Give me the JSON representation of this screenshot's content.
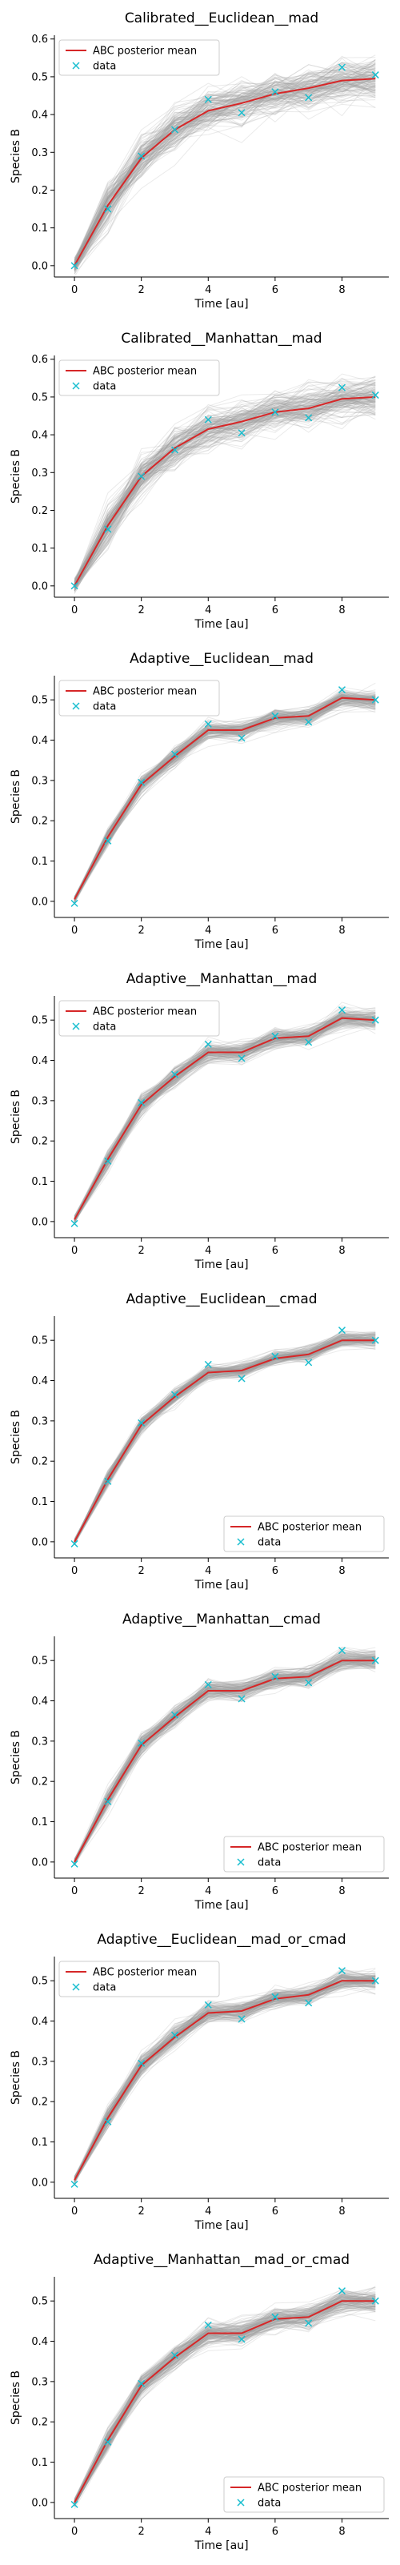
{
  "figure": {
    "ylabel": "Species B",
    "xlabel": "Time [au]",
    "legend_labels": {
      "mean": "ABC posterior mean",
      "data": "data"
    },
    "colors": {
      "posterior_samples": "#9e9e9e",
      "mean": "#d62728",
      "data": "#17becf",
      "axes": "#000000"
    }
  },
  "chart_data": [
    {
      "type": "line",
      "title": "Calibrated__Euclidean__mad",
      "xlabel": "Time [au]",
      "ylabel": "Species B",
      "x": [
        0,
        1,
        2,
        3,
        4,
        5,
        6,
        7,
        8,
        9
      ],
      "xticks": [
        0,
        2,
        4,
        6,
        8
      ],
      "yticks": [
        0.0,
        0.1,
        0.2,
        0.3,
        0.4,
        0.5,
        0.6
      ],
      "ylim": [
        -0.03,
        0.61
      ],
      "xlim": [
        -0.6,
        9.4
      ],
      "legend": "top-left",
      "grid": false,
      "series": [
        {
          "name": "ABC posterior mean",
          "style": "line",
          "values": [
            0.0,
            0.16,
            0.285,
            0.36,
            0.41,
            0.43,
            0.455,
            0.47,
            0.49,
            0.495
          ]
        },
        {
          "name": "data",
          "style": "markers-x",
          "values": [
            0.0,
            0.15,
            0.29,
            0.36,
            0.44,
            0.405,
            0.46,
            0.445,
            0.525,
            0.505
          ]
        }
      ],
      "posterior_samples": {
        "count": 140,
        "spread": 0.045
      }
    },
    {
      "type": "line",
      "title": "Calibrated__Manhattan__mad",
      "xlabel": "Time [au]",
      "ylabel": "Species B",
      "x": [
        0,
        1,
        2,
        3,
        4,
        5,
        6,
        7,
        8,
        9
      ],
      "xticks": [
        0,
        2,
        4,
        6,
        8
      ],
      "yticks": [
        0.0,
        0.1,
        0.2,
        0.3,
        0.4,
        0.5,
        0.6
      ],
      "ylim": [
        -0.03,
        0.61
      ],
      "xlim": [
        -0.6,
        9.4
      ],
      "legend": "top-left",
      "grid": false,
      "series": [
        {
          "name": "ABC posterior mean",
          "style": "line",
          "values": [
            0.0,
            0.16,
            0.29,
            0.365,
            0.415,
            0.435,
            0.46,
            0.47,
            0.495,
            0.5
          ]
        },
        {
          "name": "data",
          "style": "markers-x",
          "values": [
            0.0,
            0.15,
            0.29,
            0.36,
            0.44,
            0.405,
            0.46,
            0.445,
            0.525,
            0.505
          ]
        }
      ],
      "posterior_samples": {
        "count": 140,
        "spread": 0.04
      }
    },
    {
      "type": "line",
      "title": "Adaptive__Euclidean__mad",
      "xlabel": "Time [au]",
      "ylabel": "Species B",
      "x": [
        0,
        1,
        2,
        3,
        4,
        5,
        6,
        7,
        8,
        9
      ],
      "xticks": [
        0,
        2,
        4,
        6,
        8
      ],
      "yticks": [
        0.0,
        0.1,
        0.2,
        0.3,
        0.4,
        0.5
      ],
      "ylim": [
        -0.04,
        0.56
      ],
      "xlim": [
        -0.6,
        9.4
      ],
      "legend": "top-left",
      "grid": false,
      "series": [
        {
          "name": "ABC posterior mean",
          "style": "line",
          "values": [
            0.005,
            0.16,
            0.29,
            0.36,
            0.425,
            0.425,
            0.455,
            0.46,
            0.505,
            0.5
          ]
        },
        {
          "name": "data",
          "style": "markers-x",
          "values": [
            -0.005,
            0.15,
            0.295,
            0.365,
            0.44,
            0.405,
            0.46,
            0.445,
            0.525,
            0.5
          ]
        }
      ],
      "posterior_samples": {
        "count": 140,
        "spread": 0.018
      }
    },
    {
      "type": "line",
      "title": "Adaptive__Manhattan__mad",
      "xlabel": "Time [au]",
      "ylabel": "Species B",
      "x": [
        0,
        1,
        2,
        3,
        4,
        5,
        6,
        7,
        8,
        9
      ],
      "xticks": [
        0,
        2,
        4,
        6,
        8
      ],
      "yticks": [
        0.0,
        0.1,
        0.2,
        0.3,
        0.4,
        0.5
      ],
      "ylim": [
        -0.04,
        0.56
      ],
      "xlim": [
        -0.6,
        9.4
      ],
      "legend": "top-left",
      "grid": false,
      "series": [
        {
          "name": "ABC posterior mean",
          "style": "line",
          "values": [
            0.005,
            0.155,
            0.29,
            0.36,
            0.42,
            0.42,
            0.455,
            0.46,
            0.505,
            0.5
          ]
        },
        {
          "name": "data",
          "style": "markers-x",
          "values": [
            -0.005,
            0.15,
            0.295,
            0.365,
            0.44,
            0.405,
            0.46,
            0.445,
            0.525,
            0.5
          ]
        }
      ],
      "posterior_samples": {
        "count": 140,
        "spread": 0.02
      }
    },
    {
      "type": "line",
      "title": "Adaptive__Euclidean__cmad",
      "xlabel": "Time [au]",
      "ylabel": "Species B",
      "x": [
        0,
        1,
        2,
        3,
        4,
        5,
        6,
        7,
        8,
        9
      ],
      "xticks": [
        0,
        2,
        4,
        6,
        8
      ],
      "yticks": [
        0.0,
        0.1,
        0.2,
        0.3,
        0.4,
        0.5
      ],
      "ylim": [
        -0.04,
        0.56
      ],
      "xlim": [
        -0.6,
        9.4
      ],
      "legend": "bottom-right",
      "grid": false,
      "series": [
        {
          "name": "ABC posterior mean",
          "style": "line",
          "values": [
            0.0,
            0.155,
            0.29,
            0.36,
            0.42,
            0.425,
            0.455,
            0.465,
            0.5,
            0.5
          ]
        },
        {
          "name": "data",
          "style": "markers-x",
          "values": [
            -0.005,
            0.15,
            0.295,
            0.365,
            0.44,
            0.405,
            0.46,
            0.445,
            0.525,
            0.5
          ]
        }
      ],
      "posterior_samples": {
        "count": 140,
        "spread": 0.015
      }
    },
    {
      "type": "line",
      "title": "Adaptive__Manhattan__cmad",
      "xlabel": "Time [au]",
      "ylabel": "Species B",
      "x": [
        0,
        1,
        2,
        3,
        4,
        5,
        6,
        7,
        8,
        9
      ],
      "xticks": [
        0,
        2,
        4,
        6,
        8
      ],
      "yticks": [
        0.0,
        0.1,
        0.2,
        0.3,
        0.4,
        0.5
      ],
      "ylim": [
        -0.04,
        0.56
      ],
      "xlim": [
        -0.6,
        9.4
      ],
      "legend": "bottom-right",
      "grid": false,
      "series": [
        {
          "name": "ABC posterior mean",
          "style": "line",
          "values": [
            0.0,
            0.155,
            0.29,
            0.36,
            0.425,
            0.425,
            0.455,
            0.46,
            0.5,
            0.5
          ]
        },
        {
          "name": "data",
          "style": "markers-x",
          "values": [
            -0.005,
            0.15,
            0.295,
            0.365,
            0.44,
            0.405,
            0.46,
            0.445,
            0.525,
            0.5
          ]
        }
      ],
      "posterior_samples": {
        "count": 140,
        "spread": 0.02
      }
    },
    {
      "type": "line",
      "title": "Adaptive__Euclidean__mad_or_cmad",
      "xlabel": "Time [au]",
      "ylabel": "Species B",
      "x": [
        0,
        1,
        2,
        3,
        4,
        5,
        6,
        7,
        8,
        9
      ],
      "xticks": [
        0,
        2,
        4,
        6,
        8
      ],
      "yticks": [
        0.0,
        0.1,
        0.2,
        0.3,
        0.4,
        0.5
      ],
      "ylim": [
        -0.04,
        0.56
      ],
      "xlim": [
        -0.6,
        9.4
      ],
      "legend": "top-left",
      "grid": false,
      "series": [
        {
          "name": "ABC posterior mean",
          "style": "line",
          "values": [
            0.005,
            0.16,
            0.29,
            0.36,
            0.42,
            0.425,
            0.455,
            0.465,
            0.5,
            0.5
          ]
        },
        {
          "name": "data",
          "style": "markers-x",
          "values": [
            -0.005,
            0.15,
            0.295,
            0.365,
            0.44,
            0.405,
            0.46,
            0.445,
            0.525,
            0.5
          ]
        }
      ],
      "posterior_samples": {
        "count": 140,
        "spread": 0.02
      }
    },
    {
      "type": "line",
      "title": "Adaptive__Manhattan__mad_or_cmad",
      "xlabel": "Time [au]",
      "ylabel": "Species B",
      "x": [
        0,
        1,
        2,
        3,
        4,
        5,
        6,
        7,
        8,
        9
      ],
      "xticks": [
        0,
        2,
        4,
        6,
        8
      ],
      "yticks": [
        0.0,
        0.1,
        0.2,
        0.3,
        0.4,
        0.5
      ],
      "ylim": [
        -0.04,
        0.56
      ],
      "xlim": [
        -0.6,
        9.4
      ],
      "legend": "bottom-right",
      "grid": false,
      "series": [
        {
          "name": "ABC posterior mean",
          "style": "line",
          "values": [
            0.0,
            0.155,
            0.29,
            0.36,
            0.42,
            0.42,
            0.455,
            0.46,
            0.5,
            0.5
          ]
        },
        {
          "name": "data",
          "style": "markers-x",
          "values": [
            -0.005,
            0.15,
            0.295,
            0.365,
            0.44,
            0.405,
            0.46,
            0.445,
            0.525,
            0.5
          ]
        }
      ],
      "posterior_samples": {
        "count": 140,
        "spread": 0.022
      }
    }
  ]
}
